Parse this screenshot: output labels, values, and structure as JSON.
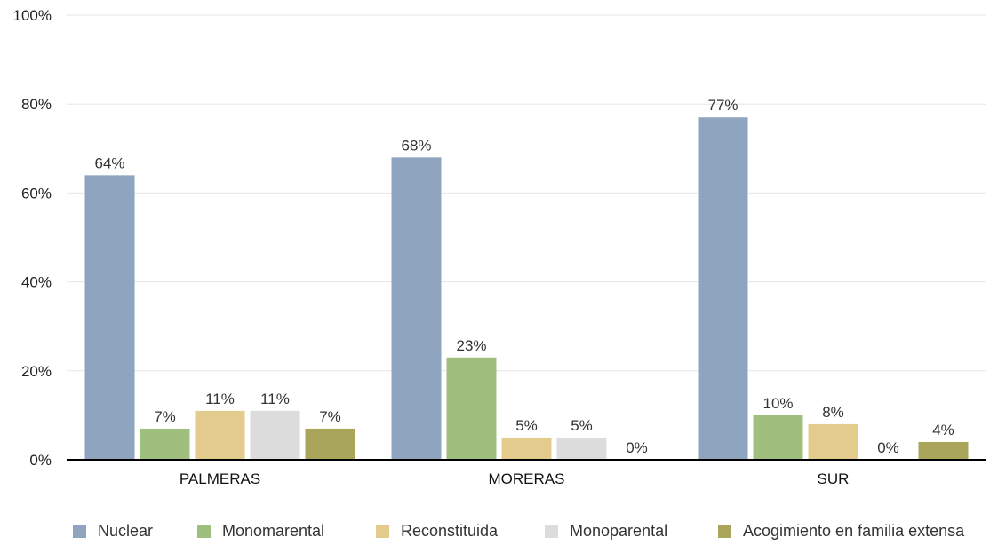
{
  "chart_data": {
    "type": "bar",
    "categories": [
      "PALMERAS",
      "MORERAS",
      "SUR"
    ],
    "series": [
      {
        "name": "Nuclear",
        "values": [
          64,
          68,
          77
        ],
        "labels": [
          "64%",
          "68%",
          "77%"
        ],
        "color": "#8fa5bf"
      },
      {
        "name": "Monomarental",
        "values": [
          7,
          23,
          10
        ],
        "labels": [
          "7%",
          "23%",
          "10%"
        ],
        "color": "#9fbf7f"
      },
      {
        "name": "Reconstituida",
        "values": [
          11,
          5,
          8
        ],
        "labels": [
          "11%",
          "5%",
          "8%"
        ],
        "color": "#e3cb8d"
      },
      {
        "name": "Monoparental",
        "values": [
          11,
          5,
          0
        ],
        "labels": [
          "11%",
          "5%",
          "0%"
        ],
        "color": "#dcdcdc"
      },
      {
        "name": "Acogimiento en familia extensa",
        "values": [
          7,
          0,
          4
        ],
        "labels": [
          "7%",
          "0%",
          "4%"
        ],
        "color": "#a9a55a"
      }
    ],
    "yticks": [
      "0%",
      "20%",
      "40%",
      "60%",
      "80%",
      "100%"
    ],
    "ylim": [
      0,
      100
    ],
    "grid": true,
    "legend_position": "bottom"
  }
}
